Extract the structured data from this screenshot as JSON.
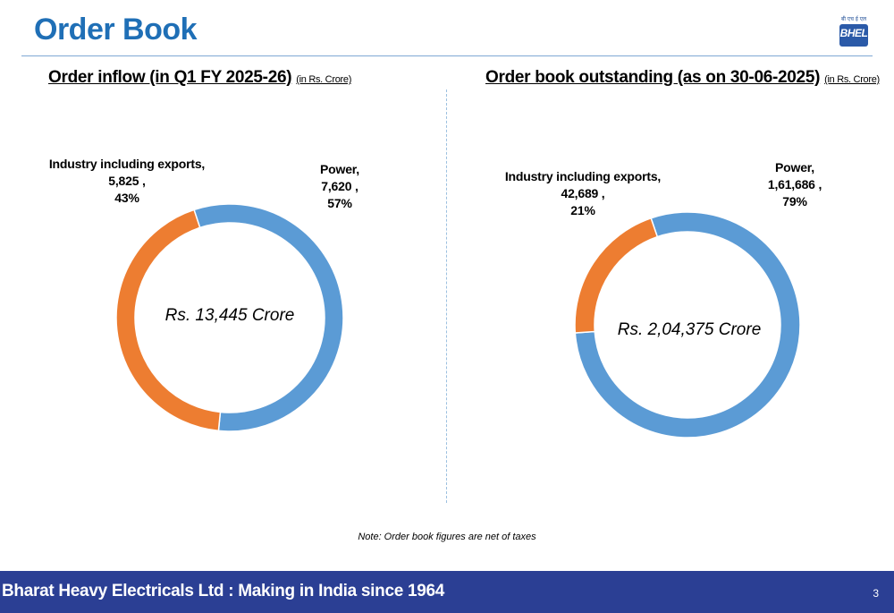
{
  "header": {
    "title": "Order Book",
    "logo_text": "BHEL",
    "logo_hindi": "बी एच ई एल"
  },
  "chart_data": [
    {
      "type": "pie",
      "donut": true,
      "title": "Order inflow (in Q1 FY 2025-26)",
      "unit": "(in Rs. Crore)",
      "center_text": "Rs. 13,445 Crore",
      "slices": [
        {
          "name": "Power,",
          "value_label": "7,620 ,",
          "value": 7620,
          "percent_label": "57%",
          "color": "#5b9bd5"
        },
        {
          "name": "Industry including exports,",
          "value_label": "5,825 ,",
          "value": 5825,
          "percent_label": "43%",
          "color": "#ed7d31"
        }
      ]
    },
    {
      "type": "pie",
      "donut": true,
      "title": "Order book outstanding (as on 30-06-2025)",
      "unit": "(in Rs. Crore)",
      "center_text": "Rs. 2,04,375 Crore",
      "slices": [
        {
          "name": "Power,",
          "value_label": "1,61,686 ,",
          "value": 161686,
          "percent_label": "79%",
          "color": "#5b9bd5"
        },
        {
          "name": "Industry including exports,",
          "value_label": "42,689 ,",
          "value": 42689,
          "percent_label": "21%",
          "color": "#ed7d31"
        }
      ]
    }
  ],
  "note": "Note: Order book figures are  net of taxes",
  "footer": {
    "text": "Bharat Heavy Electricals Ltd : Making in India since 1964",
    "page_number": "3"
  }
}
